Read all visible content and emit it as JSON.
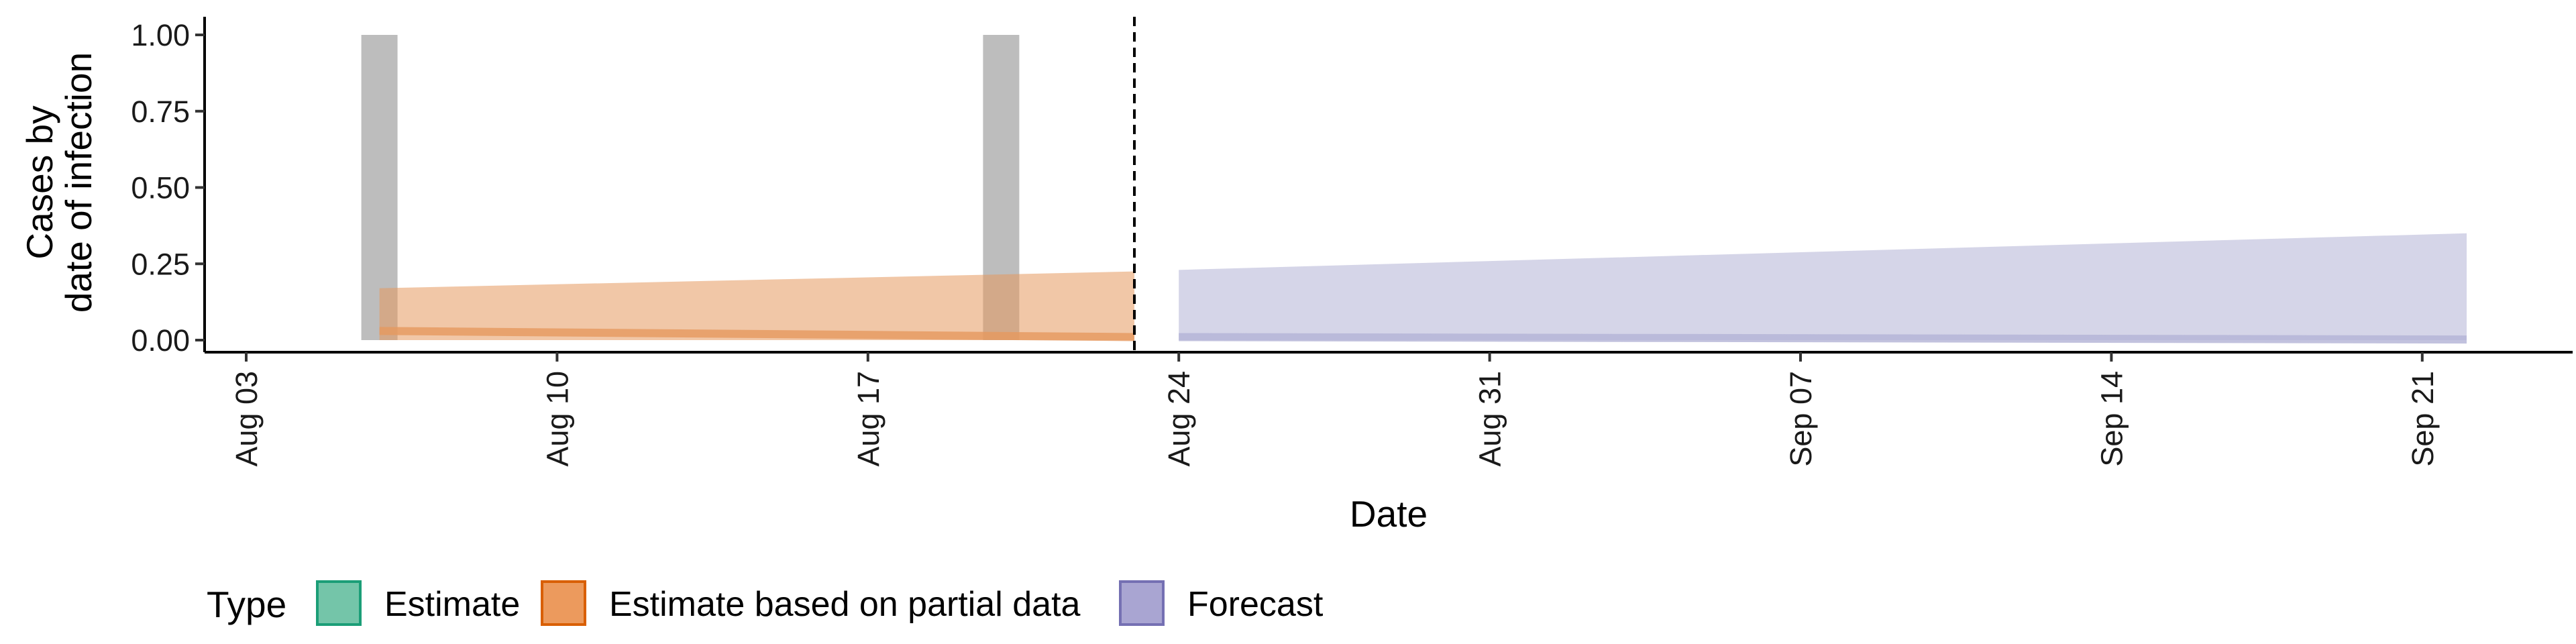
{
  "chart_data": {
    "type": "area",
    "xlabel": "Date",
    "ylabel_lines": [
      "Cases by",
      "date of infection"
    ],
    "x_ticks": [
      "2020-08-03",
      "2020-08-10",
      "2020-08-17",
      "2020-08-24",
      "2020-08-31",
      "2020-09-07",
      "2020-09-14",
      "2020-09-21"
    ],
    "x_tick_labels": [
      "Aug 03",
      "Aug 10",
      "Aug 17",
      "Aug 24",
      "Aug 31",
      "Sep 07",
      "Sep 14",
      "Sep 21"
    ],
    "xlim": [
      "2020-08-03",
      "2020-09-24"
    ],
    "ylim": [
      0,
      1
    ],
    "y_ticks": [
      0,
      0.25,
      0.5,
      0.75,
      1.0
    ],
    "y_tick_labels": [
      "0.00",
      "0.25",
      "0.50",
      "0.75",
      "1.00"
    ],
    "grid": false,
    "forecast_boundary": "2020-08-23",
    "highlight_bars": [
      {
        "date": "2020-08-06",
        "value": 1.0,
        "color": "#bdbdbd"
      },
      {
        "date": "2020-08-20",
        "value": 1.0,
        "color": "#bdbdbd"
      }
    ],
    "series": [
      {
        "name": "Estimate based on partial data",
        "color": "#e6995f",
        "x": [
          "2020-08-06",
          "2020-08-23"
        ],
        "upper": [
          0.17,
          0.225
        ],
        "lower": [
          0.0,
          0.0
        ],
        "median": [
          0.03,
          0.01
        ]
      },
      {
        "name": "Forecast",
        "color": "#b3b3d6",
        "x": [
          "2020-08-24",
          "2020-09-22"
        ],
        "upper": [
          0.23,
          0.35
        ],
        "lower": [
          0.0,
          0.0
        ],
        "median": [
          0.01,
          0.002
        ]
      }
    ],
    "legend": {
      "title": "Type",
      "position": "bottom",
      "items": [
        {
          "label": "Estimate",
          "fill": "#74c5a9",
          "stroke": "#1b9e77"
        },
        {
          "label": "Estimate based on partial data",
          "fill": "#ec9a5d",
          "stroke": "#d95f02"
        },
        {
          "label": "Forecast",
          "fill": "#a9a5d2",
          "stroke": "#7570b3"
        }
      ]
    }
  }
}
